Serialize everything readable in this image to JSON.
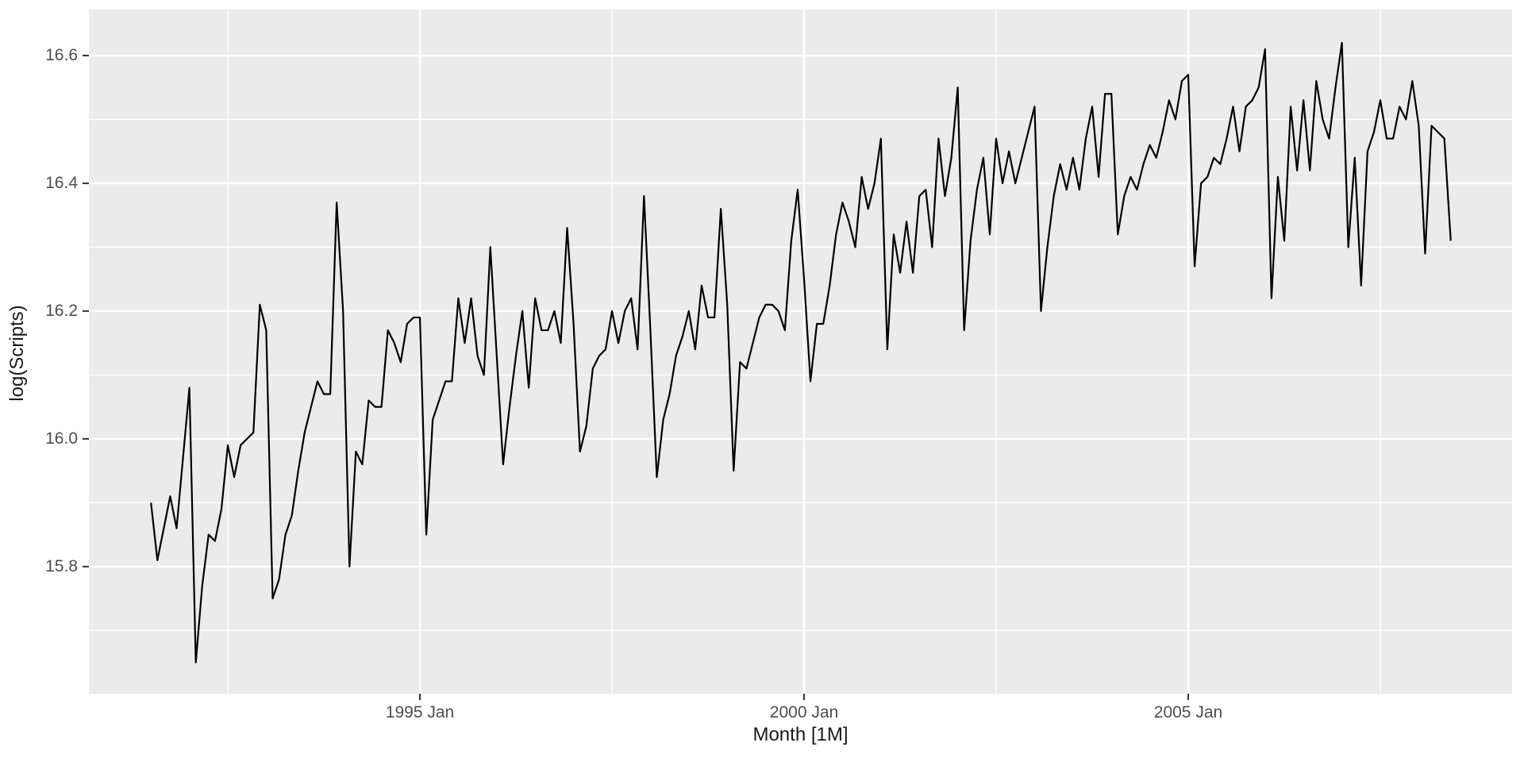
{
  "figure": {
    "y_axis_title": "log(Scripts)",
    "x_axis_title": "Month [1M]",
    "colors": {
      "panel_bg": "#EBEBEB",
      "grid": "#FFFFFF",
      "line": "#000000",
      "tick_label": "#4D4D4D",
      "tick_mark": "#333333",
      "axis_title": "#1A1A1A",
      "outer_bg": "#FFFFFF"
    }
  },
  "chart_data": {
    "type": "line",
    "title": "",
    "xlabel": "Month [1M]",
    "ylabel": "log(Scripts)",
    "legend": false,
    "grid": true,
    "x_start": {
      "year": 1991,
      "month": 7
    },
    "frequency": "monthly",
    "series": [
      {
        "name": "log(Scripts)",
        "values": [
          15.9,
          15.81,
          15.86,
          15.91,
          15.86,
          15.97,
          16.08,
          15.65,
          15.77,
          15.85,
          15.84,
          15.89,
          15.99,
          15.94,
          15.99,
          16.0,
          16.01,
          16.21,
          16.17,
          15.75,
          15.78,
          15.85,
          15.88,
          15.95,
          16.01,
          16.05,
          16.09,
          16.07,
          16.07,
          16.37,
          16.2,
          15.8,
          15.98,
          15.96,
          16.06,
          16.05,
          16.05,
          16.17,
          16.15,
          16.12,
          16.18,
          16.19,
          16.19,
          15.85,
          16.03,
          16.06,
          16.09,
          16.09,
          16.22,
          16.15,
          16.22,
          16.13,
          16.1,
          16.3,
          16.13,
          15.96,
          16.05,
          16.13,
          16.2,
          16.08,
          16.22,
          16.17,
          16.17,
          16.2,
          16.15,
          16.33,
          16.18,
          15.98,
          16.02,
          16.11,
          16.13,
          16.14,
          16.2,
          16.15,
          16.2,
          16.22,
          16.14,
          16.38,
          16.17,
          15.94,
          16.03,
          16.07,
          16.13,
          16.16,
          16.2,
          16.14,
          16.24,
          16.19,
          16.19,
          16.36,
          16.21,
          15.95,
          16.12,
          16.11,
          16.15,
          16.19,
          16.21,
          16.21,
          16.2,
          16.17,
          16.31,
          16.39,
          16.25,
          16.09,
          16.18,
          16.18,
          16.24,
          16.32,
          16.37,
          16.34,
          16.3,
          16.41,
          16.36,
          16.4,
          16.47,
          16.14,
          16.32,
          16.26,
          16.34,
          16.26,
          16.38,
          16.39,
          16.3,
          16.47,
          16.38,
          16.44,
          16.55,
          16.17,
          16.31,
          16.39,
          16.44,
          16.32,
          16.47,
          16.4,
          16.45,
          16.4,
          16.44,
          16.48,
          16.52,
          16.2,
          16.3,
          16.38,
          16.43,
          16.39,
          16.44,
          16.39,
          16.47,
          16.52,
          16.41,
          16.54,
          16.54,
          16.32,
          16.38,
          16.41,
          16.39,
          16.43,
          16.46,
          16.44,
          16.48,
          16.53,
          16.5,
          16.56,
          16.57,
          16.27,
          16.4,
          16.41,
          16.44,
          16.43,
          16.47,
          16.52,
          16.45,
          16.52,
          16.53,
          16.55,
          16.61,
          16.22,
          16.41,
          16.31,
          16.52,
          16.42,
          16.53,
          16.42,
          16.56,
          16.5,
          16.47,
          16.55,
          16.62,
          16.3,
          16.44,
          16.24,
          16.45,
          16.48,
          16.53,
          16.47,
          16.47,
          16.52,
          16.5,
          16.56,
          16.49,
          16.29,
          16.49,
          16.48,
          16.47,
          16.31
        ]
      }
    ],
    "x_ticks": [
      {
        "t": 1995.0,
        "label": "1995 Jan"
      },
      {
        "t": 2000.0,
        "label": "2000 Jan"
      },
      {
        "t": 2005.0,
        "label": "2005 Jan"
      }
    ],
    "x_minor_ticks": [
      1992.5,
      1997.5,
      2002.5,
      2007.5
    ],
    "y_ticks": [
      {
        "v": 15.8,
        "label": "15.8"
      },
      {
        "v": 16.0,
        "label": "16.0"
      },
      {
        "v": 16.2,
        "label": "16.2"
      },
      {
        "v": 16.4,
        "label": "16.4"
      },
      {
        "v": 16.6,
        "label": "16.6"
      }
    ],
    "y_minor_ticks": [
      15.7,
      15.9,
      16.1,
      16.3,
      16.5
    ],
    "xlim": [
      1990.692,
      2009.215
    ],
    "ylim": [
      15.601,
      16.672
    ]
  }
}
